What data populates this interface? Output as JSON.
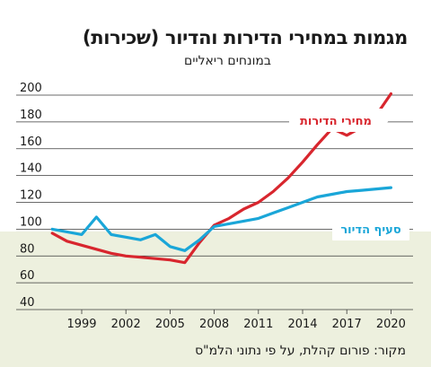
{
  "title": "מגמות במחירי הדירות והדיור (שכירות)",
  "subtitle": "במונחים ריאליים",
  "source": "מקור: פורום קהלת, על פי נתוני הלמ\"ס",
  "chart_data": {
    "type": "line",
    "title": "מגמות במחירי הדירות והדיור (שכירות)",
    "subtitle": "במונחים ריאליים",
    "xlabel": "",
    "ylabel": "",
    "ylim": [
      40,
      200
    ],
    "xlim": [
      1996.5,
      2021.5
    ],
    "yticks": [
      40,
      60,
      80,
      100,
      120,
      140,
      160,
      180,
      200
    ],
    "xticks": [
      1999,
      2002,
      2005,
      2008,
      2011,
      2014,
      2017,
      2020
    ],
    "grid": true,
    "series": [
      {
        "name": "מחירי הדירות",
        "color": "#d8262e",
        "label_position": "top-right",
        "x": [
          1997,
          1998,
          1999,
          2000,
          2001,
          2002,
          2003,
          2004,
          2005,
          2006,
          2007,
          2008,
          2009,
          2010,
          2011,
          2012,
          2013,
          2014,
          2015,
          2016,
          2017,
          2018,
          2019,
          2020
        ],
        "values": [
          97,
          91,
          88,
          85,
          82,
          80,
          79,
          78,
          77,
          75,
          90,
          103,
          108,
          115,
          120,
          128,
          138,
          150,
          163,
          175,
          170,
          176,
          185,
          201
        ]
      },
      {
        "name": "סעיף הדיור",
        "color": "#1aa6d8",
        "label_position": "right",
        "x": [
          1997,
          1998,
          1999,
          2000,
          2001,
          2002,
          2003,
          2004,
          2005,
          2006,
          2007,
          2008,
          2009,
          2010,
          2011,
          2012,
          2013,
          2014,
          2015,
          2016,
          2017,
          2018,
          2019,
          2020
        ],
        "values": [
          100,
          98,
          96,
          109,
          96,
          94,
          92,
          96,
          87,
          84,
          92,
          102,
          104,
          106,
          108,
          112,
          116,
          120,
          124,
          126,
          128,
          129,
          130,
          131
        ]
      }
    ]
  },
  "colors": {
    "band": "#edf0de",
    "grid": "#3a3a3a",
    "label_bg": "#ffffff"
  }
}
